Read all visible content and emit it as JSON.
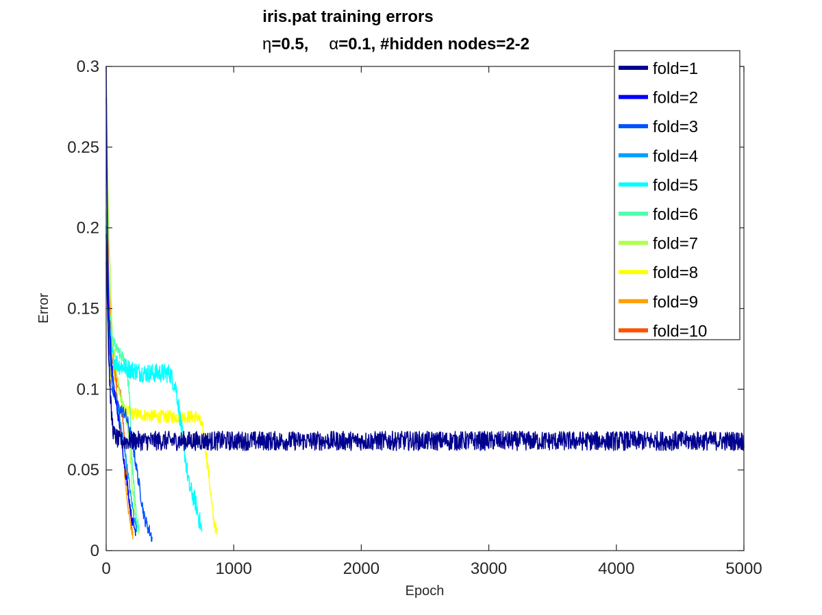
{
  "chart_data": {
    "type": "line",
    "title": "iris.pat training errors",
    "subtitle": {
      "eta_symbol": "η",
      "eta_value": "=0.5,",
      "alpha_symbol": "α",
      "rest": "=0.1, #hidden nodes=2-2"
    },
    "xlabel": "Epoch",
    "ylabel": "Error",
    "xlim": [
      0,
      5000
    ],
    "ylim": [
      0,
      0.3
    ],
    "x_ticks": [
      0,
      1000,
      2000,
      3000,
      4000,
      5000
    ],
    "x_tick_labels": [
      "0",
      "1000",
      "2000",
      "3000",
      "4000",
      "5000"
    ],
    "y_ticks": [
      0,
      0.05,
      0.1,
      0.15,
      0.2,
      0.25,
      0.3
    ],
    "y_tick_labels": [
      "0",
      "0.05",
      "0.1",
      "0.15",
      "0.2",
      "0.25",
      "0.3"
    ],
    "grid": false,
    "legend_position": "top-right",
    "series": [
      {
        "name": "fold=1",
        "color": "#00008f",
        "noise": 0.006,
        "x": [
          0,
          20,
          40,
          60,
          100,
          200,
          500,
          1000,
          2000,
          3000,
          4000,
          5000
        ],
        "y": [
          0.2,
          0.12,
          0.085,
          0.072,
          0.068,
          0.068,
          0.068,
          0.068,
          0.068,
          0.068,
          0.068,
          0.068
        ]
      },
      {
        "name": "fold=2",
        "color": "#0000ff",
        "noise": 0.003,
        "x": [
          0,
          10,
          20,
          40,
          60,
          100,
          150,
          200,
          230
        ],
        "y": [
          0.3,
          0.2,
          0.15,
          0.12,
          0.1,
          0.08,
          0.05,
          0.02,
          0.012
        ]
      },
      {
        "name": "fold=3",
        "color": "#0050ff",
        "noise": 0.004,
        "x": [
          0,
          20,
          50,
          100,
          150,
          200,
          250,
          300,
          360
        ],
        "y": [
          0.18,
          0.13,
          0.1,
          0.088,
          0.085,
          0.07,
          0.045,
          0.02,
          0.008
        ]
      },
      {
        "name": "fold=4",
        "color": "#00a0ff",
        "noise": 0.003,
        "x": [
          0,
          20,
          50,
          100,
          150,
          200,
          240
        ],
        "y": [
          0.2,
          0.14,
          0.1,
          0.085,
          0.06,
          0.03,
          0.012
        ]
      },
      {
        "name": "fold=5",
        "color": "#00ffff",
        "noise": 0.006,
        "x": [
          0,
          20,
          50,
          100,
          200,
          300,
          400,
          500,
          550,
          600,
          650,
          700,
          750
        ],
        "y": [
          0.2,
          0.14,
          0.12,
          0.115,
          0.112,
          0.11,
          0.11,
          0.11,
          0.1,
          0.07,
          0.04,
          0.03,
          0.012
        ]
      },
      {
        "name": "fold=6",
        "color": "#50ffaf",
        "noise": 0.004,
        "x": [
          0,
          20,
          50,
          100,
          150,
          180,
          200,
          230,
          260
        ],
        "y": [
          0.21,
          0.15,
          0.13,
          0.122,
          0.118,
          0.1,
          0.06,
          0.025,
          0.012
        ]
      },
      {
        "name": "fold=7",
        "color": "#afff50",
        "noise": 0.004,
        "x": [
          0,
          20,
          50,
          100,
          150,
          180,
          200,
          230,
          260
        ],
        "y": [
          0.29,
          0.2,
          0.13,
          0.1,
          0.085,
          0.07,
          0.045,
          0.02,
          0.012
        ]
      },
      {
        "name": "fold=8",
        "color": "#ffff00",
        "noise": 0.004,
        "x": [
          0,
          20,
          50,
          100,
          200,
          400,
          600,
          720,
          760,
          800,
          840,
          870
        ],
        "y": [
          0.21,
          0.12,
          0.1,
          0.088,
          0.085,
          0.083,
          0.083,
          0.083,
          0.075,
          0.05,
          0.02,
          0.01
        ]
      },
      {
        "name": "fold=9",
        "color": "#ffa000",
        "noise": 0.003,
        "x": [
          0,
          20,
          50,
          80,
          100,
          130,
          160,
          190,
          210
        ],
        "y": [
          0.29,
          0.17,
          0.12,
          0.1,
          0.085,
          0.06,
          0.035,
          0.015,
          0.01
        ]
      },
      {
        "name": "fold=10",
        "color": "#ff5000",
        "noise": 0.003,
        "x": [
          0,
          20,
          50,
          80,
          120,
          150,
          180,
          200,
          210
        ],
        "y": [
          0.28,
          0.16,
          0.12,
          0.105,
          0.095,
          0.06,
          0.03,
          0.015,
          0.01
        ]
      }
    ]
  }
}
